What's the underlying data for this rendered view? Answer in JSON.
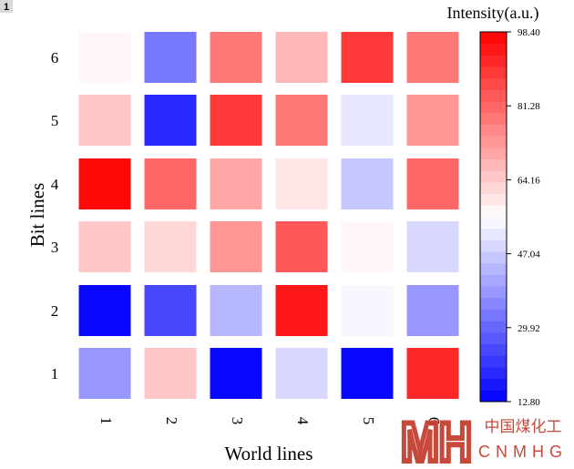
{
  "corner_badge": "1",
  "chart_data": {
    "type": "heatmap",
    "title": "",
    "xlabel": "World lines",
    "ylabel": "Bit lines",
    "x_categories": [
      "1",
      "2",
      "3",
      "4",
      "5",
      "6"
    ],
    "y_categories": [
      "1",
      "2",
      "3",
      "4",
      "5",
      "6"
    ],
    "values": [
      [
        37,
        65,
        13,
        48,
        13,
        91
      ],
      [
        15,
        26,
        43,
        95,
        53,
        39
      ],
      [
        65,
        61,
        72,
        84,
        57,
        49
      ],
      [
        98,
        82,
        69,
        60,
        45,
        82
      ],
      [
        66,
        19,
        88,
        78,
        52,
        74
      ],
      [
        56,
        34,
        79,
        67,
        90,
        78
      ]
    ],
    "colorbar": {
      "label": "Intensity(a.u.)",
      "min": 12.8,
      "max": 98.4,
      "ticks": [
        "98.40",
        "81.28",
        "64.16",
        "47.04",
        "29.92",
        "12.80"
      ],
      "low_color": "#0000ff",
      "mid_color": "#ffffff",
      "high_color": "#ff0000",
      "levels": 32
    },
    "grid": false
  },
  "watermark": {
    "logo_letters": "MH",
    "chinese_text": "中国煤化工",
    "latin_text": "CNMHG",
    "color": "#c23a2b"
  }
}
